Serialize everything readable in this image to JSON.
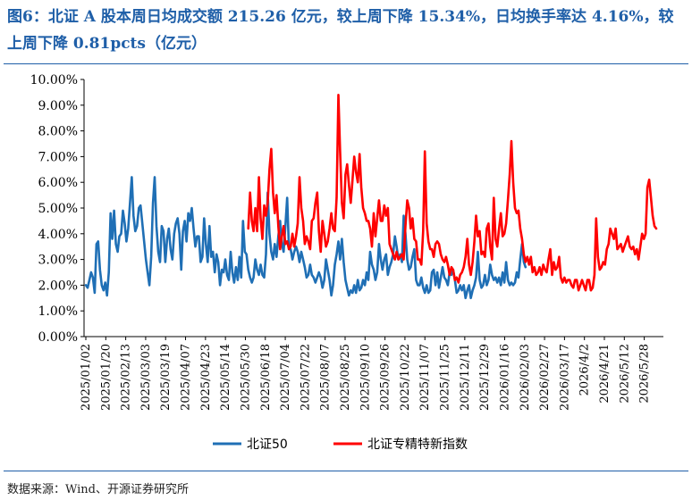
{
  "header": {
    "title": "图6：北证 A 股本周日均成交额 215.26 亿元，较上周下降 15.34%，日均换手率达 4.16%，较上周下降 0.81pcts（亿元）"
  },
  "footer": {
    "source": "数据来源：Wind、开源证券研究所"
  },
  "colors": {
    "series1": "#1f6fb5",
    "series2": "#ff0000",
    "accent": "#1f5fa8"
  },
  "chart_data": {
    "type": "line",
    "title": "",
    "xlabel": "",
    "ylabel": "",
    "ylim": [
      0,
      10
    ],
    "yticks": [
      "0.00%",
      "1.00%",
      "2.00%",
      "3.00%",
      "4.00%",
      "5.00%",
      "6.00%",
      "7.00%",
      "8.00%",
      "9.00%",
      "10.00%"
    ],
    "xtick_labels": [
      "2025/01/02",
      "2025/01/20",
      "2025/02/13",
      "2025/03/03",
      "2025/03/19",
      "2025/04/07",
      "2025/04/23",
      "2025/05/14",
      "2025/05/30",
      "2025/06/18",
      "2025/07/04",
      "2025/07/22",
      "2025/08/07",
      "2025/08/25",
      "2025/09/10",
      "2025/09/26",
      "2025/10/22",
      "2025/11/07",
      "2025/11/25",
      "2025/12/11",
      "2025/12/29",
      "2026/01/16",
      "2026/02/03",
      "2026/02/27",
      "2026/03/17",
      "2026/4/2",
      "2026/4/21",
      "2026/5/12",
      "2026/5/28"
    ],
    "legend_position": "bottom",
    "grid": false,
    "series": [
      {
        "name": "北证50",
        "start_index": 0,
        "values": [
          2.0,
          1.9,
          2.2,
          2.5,
          2.3,
          1.7,
          3.6,
          3.7,
          2.6,
          2.0,
          1.8,
          2.1,
          1.6,
          2.5,
          4.8,
          3.8,
          4.9,
          3.6,
          3.3,
          3.9,
          4.0,
          4.9,
          4.4,
          3.7,
          4.2,
          5.2,
          6.2,
          4.7,
          4.1,
          4.3,
          5.0,
          5.1,
          4.4,
          3.7,
          3.0,
          2.5,
          2.0,
          3.1,
          5.2,
          6.2,
          4.3,
          3.3,
          2.9,
          4.3,
          4.1,
          2.9,
          3.8,
          4.2,
          3.4,
          3.0,
          4.0,
          4.4,
          4.6,
          4.0,
          2.6,
          4.1,
          4.5,
          3.7,
          4.8,
          4.5,
          5.0,
          4.2,
          3.5,
          3.9,
          3.9,
          2.9,
          3.1,
          4.6,
          3.6,
          2.9,
          4.3,
          3.1,
          3.3,
          2.5,
          3.2,
          2.9,
          2.0,
          2.6,
          2.5,
          3.0,
          2.4,
          2.2,
          3.3,
          2.5,
          2.1,
          2.7,
          2.2,
          3.1,
          2.3,
          4.5,
          3.3,
          3.2,
          2.6,
          2.3,
          2.1,
          2.3,
          3.0,
          2.6,
          2.4,
          2.8,
          2.4,
          2.3,
          3.2,
          5.6,
          4.0,
          3.3,
          3.0,
          3.6,
          3.1,
          3.9,
          4.5,
          3.6,
          3.3,
          4.3,
          5.4,
          3.4,
          3.4,
          3.0,
          3.3,
          3.5,
          3.3,
          2.9,
          3.3,
          3.0,
          2.7,
          2.3,
          2.4,
          2.8,
          2.4,
          2.3,
          2.1,
          2.3,
          2.5,
          2.3,
          1.9,
          2.2,
          3.0,
          2.6,
          2.2,
          1.6,
          2.0,
          2.8,
          3.2,
          3.7,
          3.0,
          3.8,
          2.9,
          2.2,
          1.9,
          1.6,
          1.8,
          1.7,
          2.0,
          1.7,
          2.2,
          1.8,
          1.9,
          2.2,
          2.0,
          2.5,
          2.2,
          3.3,
          2.8,
          2.6,
          2.2,
          2.5,
          3.6,
          3.0,
          2.6,
          3.0,
          3.2,
          2.4,
          2.7,
          2.9,
          3.2,
          3.9,
          3.5,
          3.0,
          3.2,
          2.9,
          4.7,
          4.0,
          3.0,
          2.6,
          2.7,
          3.1,
          3.4,
          2.2,
          2.0,
          2.0,
          2.3,
          1.9,
          1.7,
          2.0,
          1.7,
          1.8,
          2.5,
          2.6,
          2.0,
          2.5,
          1.9,
          2.3,
          2.7,
          2.3,
          2.2,
          2.0,
          2.5,
          2.4,
          2.6,
          2.2,
          1.7,
          1.8,
          2.0,
          1.8,
          2.0,
          1.5,
          1.8,
          2.0,
          1.5,
          1.8,
          2.0,
          2.3,
          3.3,
          2.2,
          1.9,
          2.0,
          2.4,
          2.0,
          2.2,
          2.8,
          2.4,
          2.2,
          2.3,
          2.1,
          2.3,
          2.0,
          2.5,
          2.1,
          2.9,
          2.2,
          2.0,
          2.1,
          2.0,
          2.1,
          2.5,
          2.3,
          3.0,
          3.6,
          2.9,
          2.7
        ]
      },
      {
        "name": "北证专精特新指数",
        "start_index": 92,
        "values": [
          4.2,
          5.6,
          4.5,
          4.1,
          5.0,
          4.1,
          6.2,
          4.6,
          3.8,
          5.1,
          4.7,
          5.2,
          6.5,
          7.3,
          5.6,
          4.8,
          5.5,
          4.3,
          3.4,
          3.9,
          4.3,
          3.6,
          3.7,
          3.4,
          3.5,
          4.0,
          3.5,
          3.9,
          4.4,
          6.2,
          5.0,
          4.5,
          3.6,
          3.9,
          3.7,
          3.4,
          4.5,
          4.6,
          5.2,
          5.6,
          4.1,
          3.3,
          4.5,
          4.0,
          3.5,
          3.7,
          4.2,
          4.8,
          4.2,
          4.1,
          5.4,
          9.4,
          7.2,
          5.2,
          4.6,
          6.3,
          6.7,
          5.9,
          5.2,
          6.1,
          7.0,
          6.4,
          6.0,
          7.1,
          5.8,
          5.0,
          4.8,
          4.5,
          4.5,
          4.2,
          3.5,
          4.8,
          3.9,
          4.6,
          5.3,
          4.5,
          4.5,
          5.1,
          4.7,
          5.0,
          3.6,
          3.4,
          3.2,
          3.0,
          3.3,
          3.0,
          3.1,
          3.2,
          3.0,
          4.3,
          5.3,
          5.0,
          4.2,
          4.6,
          3.8,
          3.7,
          3.0,
          3.0,
          2.8,
          4.1,
          7.2,
          4.4,
          3.7,
          3.4,
          3.4,
          3.1,
          3.6,
          3.7,
          3.6,
          3.2,
          3.0,
          2.9,
          3.1,
          2.8,
          2.4,
          2.7,
          2.6,
          2.2,
          2.3,
          2.1,
          2.4,
          2.5,
          2.7,
          3.1,
          3.8,
          2.8,
          2.4,
          2.9,
          3.7,
          4.7,
          3.9,
          4.1,
          3.2,
          3.3,
          3.1,
          4.2,
          4.4,
          3.5,
          3.0,
          5.4,
          3.8,
          3.5,
          4.2,
          4.8,
          3.9,
          4.0,
          4.4,
          5.3,
          6.3,
          7.6,
          6.0,
          5.0,
          4.8,
          4.9,
          4.2,
          3.8,
          3.2,
          2.9,
          3.1,
          2.8,
          3.1,
          2.5,
          2.7,
          2.4,
          2.5,
          2.7,
          2.4,
          2.8,
          2.6,
          2.5,
          3.0,
          3.4,
          2.4,
          2.9,
          2.6,
          2.7,
          3.1,
          2.3,
          2.1,
          2.3,
          2.1,
          2.2,
          2.2,
          2.0,
          1.9,
          2.2,
          2.2,
          1.8,
          2.0,
          2.2,
          2.0,
          1.8,
          2.2,
          2.2,
          1.8,
          1.9,
          2.4,
          4.6,
          3.1,
          2.6,
          2.7,
          2.9,
          2.8,
          3.4,
          3.6,
          4.2,
          4.0,
          3.8,
          4.2,
          3.4,
          3.5,
          3.6,
          3.3,
          3.5,
          3.7,
          3.9,
          3.5,
          3.4,
          3.5,
          3.2,
          3.4,
          3.0,
          3.5,
          4.0,
          3.8,
          4.0,
          5.8,
          6.1,
          5.4,
          4.7,
          4.3,
          4.2
        ]
      }
    ]
  }
}
